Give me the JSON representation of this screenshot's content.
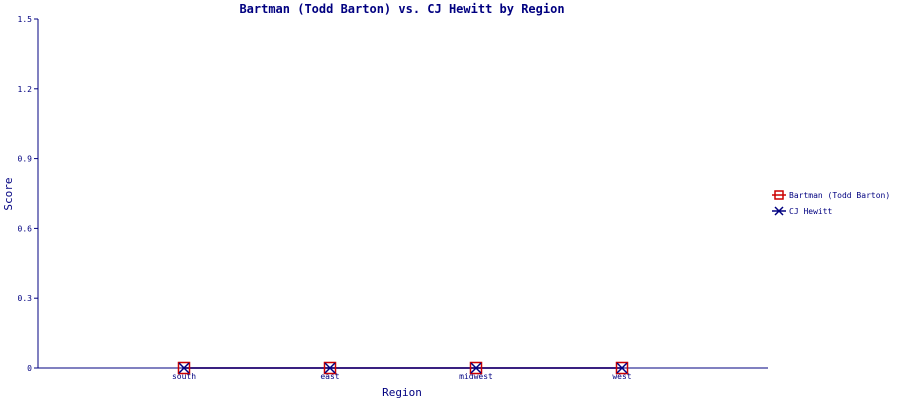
{
  "chart_data": {
    "type": "line",
    "title": "Bartman (Todd Barton) vs. CJ Hewitt by Region",
    "xlabel": "Region",
    "ylabel": "Score",
    "categories": [
      "south",
      "east",
      "midwest",
      "west"
    ],
    "ylim": [
      0,
      1.5
    ],
    "yticks": [
      "0",
      "0.3",
      "0.6",
      "0.9",
      "1.2",
      "1.5"
    ],
    "grid": false,
    "legend_position": "right",
    "series": [
      {
        "name": "Bartman (Todd Barton)",
        "values": [
          0,
          0,
          0,
          0
        ],
        "color": "#cc0000",
        "marker": "square"
      },
      {
        "name": "CJ Hewitt",
        "values": [
          0,
          0,
          0,
          0
        ],
        "color": "#000080",
        "marker": "x"
      }
    ]
  }
}
